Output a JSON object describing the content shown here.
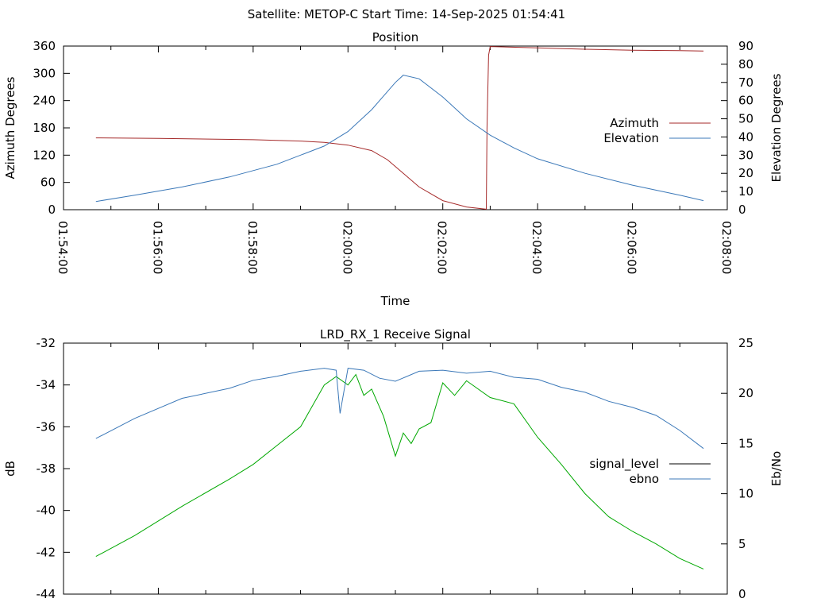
{
  "header": {
    "title": "Satellite: METOP-C    Start Time: 14-Sep-2025 01:54:41"
  },
  "colors": {
    "azimuth": "#a52a2a",
    "elevation": "#3b78b8",
    "signal_level": "#00a800",
    "ebno": "#3b78b8",
    "axis": "#000000"
  },
  "chart_data": [
    {
      "type": "line",
      "title": "Position",
      "xlabel": "Time",
      "ylabel": "Azimuth Degrees",
      "y2label": "Elevation Degrees",
      "xlim": [
        "01:54:00",
        "02:08:00"
      ],
      "ylim": [
        0,
        360
      ],
      "y2lim": [
        0,
        90
      ],
      "x_ticks": [
        "01:54:00",
        "01:56:00",
        "01:58:00",
        "02:00:00",
        "02:02:00",
        "02:04:00",
        "02:06:00",
        "02:08:00"
      ],
      "y_ticks": [
        0,
        60,
        120,
        180,
        240,
        300,
        360
      ],
      "y2_ticks": [
        0,
        10,
        20,
        30,
        40,
        50,
        60,
        70,
        80,
        90
      ],
      "grid": false,
      "legend": "right",
      "series": [
        {
          "name": "Azimuth",
          "axis": "left",
          "x": [
            "01:54:41",
            "01:56:00",
            "01:58:00",
            "01:59:00",
            "01:59:30",
            "02:00:00",
            "02:00:30",
            "02:00:50",
            "02:01:10",
            "02:01:30",
            "02:02:00",
            "02:02:30",
            "02:02:55",
            "02:02:56",
            "02:02:58",
            "02:03:00",
            "02:04:00",
            "02:05:00",
            "02:06:00",
            "02:07:00",
            "02:07:30"
          ],
          "values": [
            158,
            157,
            154,
            151,
            148,
            142,
            130,
            110,
            80,
            50,
            20,
            6,
            1,
            180,
            340,
            359,
            356,
            353,
            351,
            350,
            349
          ]
        },
        {
          "name": "Elevation",
          "axis": "right",
          "x": [
            "01:54:41",
            "01:55:30",
            "01:56:30",
            "01:57:30",
            "01:58:30",
            "01:59:30",
            "02:00:00",
            "02:00:30",
            "02:01:00",
            "02:01:10",
            "02:01:30",
            "02:02:00",
            "02:02:30",
            "02:03:00",
            "02:03:30",
            "02:04:00",
            "02:05:00",
            "02:06:00",
            "02:07:00",
            "02:07:30"
          ],
          "values": [
            4.5,
            8,
            12.5,
            18,
            25,
            35,
            43,
            55,
            70,
            74,
            72,
            62,
            50,
            41,
            34,
            28,
            20,
            13.5,
            8,
            5
          ]
        }
      ]
    },
    {
      "type": "line",
      "title": "LRD_RX_1 Receive Signal",
      "xlabel": "",
      "ylabel": "dB",
      "y2label": "Eb/No",
      "xlim": [
        "01:54:00",
        "02:08:00"
      ],
      "ylim": [
        -44,
        -32
      ],
      "y2lim": [
        0,
        25
      ],
      "y_ticks": [
        -44,
        -42,
        -40,
        -38,
        -36,
        -34,
        -32
      ],
      "y2_ticks": [
        0,
        5,
        10,
        15,
        20,
        25
      ],
      "grid": false,
      "legend": "right",
      "series": [
        {
          "name": "signal_level",
          "axis": "left",
          "x": [
            "01:54:41",
            "01:55:30",
            "01:56:30",
            "01:57:30",
            "01:58:00",
            "01:58:30",
            "01:59:00",
            "01:59:15",
            "01:59:30",
            "01:59:45",
            "02:00:00",
            "02:00:10",
            "02:00:20",
            "02:00:30",
            "02:00:45",
            "02:01:00",
            "02:01:10",
            "02:01:20",
            "02:01:30",
            "02:01:45",
            "02:02:00",
            "02:02:15",
            "02:02:30",
            "02:03:00",
            "02:03:30",
            "02:04:00",
            "02:04:30",
            "02:05:00",
            "02:05:30",
            "02:06:00",
            "02:06:30",
            "02:07:00",
            "02:07:30"
          ],
          "values": [
            -42.2,
            -41.2,
            -39.8,
            -38.5,
            -37.8,
            -36.9,
            -36.0,
            -35.0,
            -34.0,
            -33.6,
            -34.0,
            -33.5,
            -34.5,
            -34.2,
            -35.5,
            -37.4,
            -36.3,
            -36.8,
            -36.1,
            -35.8,
            -33.9,
            -34.5,
            -33.8,
            -34.6,
            -34.9,
            -36.5,
            -37.8,
            -39.2,
            -40.3,
            -41.0,
            -41.6,
            -42.3,
            -42.8
          ]
        },
        {
          "name": "ebno",
          "axis": "right",
          "x": [
            "01:54:41",
            "01:55:30",
            "01:56:30",
            "01:57:30",
            "01:58:00",
            "01:58:30",
            "01:59:00",
            "01:59:30",
            "01:59:45",
            "01:59:50",
            "02:00:00",
            "02:00:20",
            "02:00:40",
            "02:01:00",
            "02:01:30",
            "02:02:00",
            "02:02:30",
            "02:03:00",
            "02:03:30",
            "02:04:00",
            "02:04:30",
            "02:05:00",
            "02:05:30",
            "02:06:00",
            "02:06:30",
            "02:07:00",
            "02:07:30"
          ],
          "values": [
            15.5,
            17.5,
            19.5,
            20.5,
            21.3,
            21.7,
            22.2,
            22.5,
            22.3,
            18.0,
            22.5,
            22.3,
            21.5,
            21.2,
            22.2,
            22.3,
            22.0,
            22.2,
            21.6,
            21.4,
            20.6,
            20.1,
            19.2,
            18.6,
            17.8,
            16.3,
            14.5
          ]
        }
      ]
    }
  ]
}
